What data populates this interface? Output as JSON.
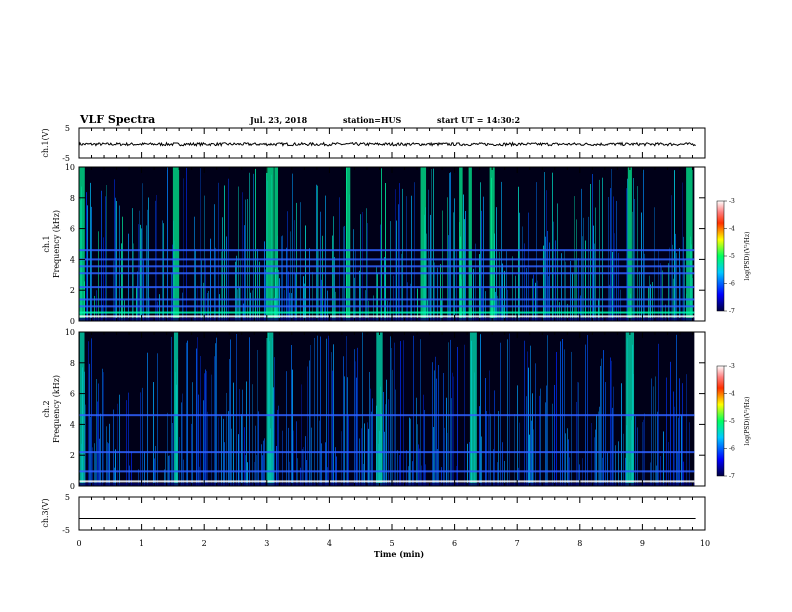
{
  "header": {
    "title": "VLF Spectra",
    "date": "Jul. 23, 2018",
    "station": "station=HUS",
    "start": "start UT =  14:30:2"
  },
  "chart_data": [
    {
      "type": "line",
      "name": "ch1-waveform",
      "ylabel": "ch.1(V)",
      "yticks": [
        "5",
        "-5"
      ],
      "ylim": [
        -5,
        5
      ],
      "baseline": -0.4,
      "noise_amplitude": 0.5,
      "xlim": [
        0,
        10
      ]
    },
    {
      "type": "heatmap",
      "name": "ch1-spectrogram",
      "ylabel": "ch.1\nFrequency (kHz)",
      "yticks": [
        "0",
        "2",
        "4",
        "6",
        "8",
        "10"
      ],
      "ylim": [
        0,
        10
      ],
      "xlim": [
        0,
        10
      ],
      "data_end_min": 9.83,
      "horizontal_lines_khz": [
        0.3,
        0.55,
        0.95,
        1.4,
        2.2,
        3.1,
        3.55,
        4.0,
        4.6
      ],
      "bright_bursts_min": [
        0.05,
        1.55,
        3.05,
        3.15,
        4.3,
        5.5,
        6.1,
        6.25,
        6.6,
        8.8,
        9.75
      ],
      "colorbar": {
        "label": "log(PSD)(V²/Hz)",
        "ticks": [
          "-3",
          "-4",
          "-5",
          "-6",
          "-7"
        ],
        "range": [
          -7,
          -3
        ]
      }
    },
    {
      "type": "heatmap",
      "name": "ch2-spectrogram",
      "ylabel": "ch.2\nFrequency (kHz)",
      "yticks": [
        "0",
        "2",
        "4",
        "6",
        "8",
        "10"
      ],
      "ylim": [
        0,
        10
      ],
      "xlim": [
        0,
        10
      ],
      "data_end_min": 9.83,
      "horizontal_lines_khz": [
        0.3,
        0.95,
        2.2,
        4.6
      ],
      "bright_bursts_min": [
        0.05,
        1.55,
        3.05,
        4.8,
        6.3,
        8.8
      ],
      "colorbar": {
        "label": "log(PSD)(V²/Hz)",
        "ticks": [
          "-3",
          "-4",
          "-5",
          "-6",
          "-7"
        ],
        "range": [
          -7,
          -3
        ]
      }
    },
    {
      "type": "line",
      "name": "ch3-waveform",
      "ylabel": "ch.3(V)",
      "yticks": [
        "5",
        "-5"
      ],
      "ylim": [
        -5,
        5
      ],
      "baseline": -1.5,
      "noise_amplitude": 0,
      "xlim": [
        0,
        10
      ]
    }
  ],
  "x_axis": {
    "label": "Time (min)",
    "ticks": [
      "0",
      "1",
      "2",
      "3",
      "4",
      "5",
      "6",
      "7",
      "8",
      "9",
      "10"
    ]
  }
}
